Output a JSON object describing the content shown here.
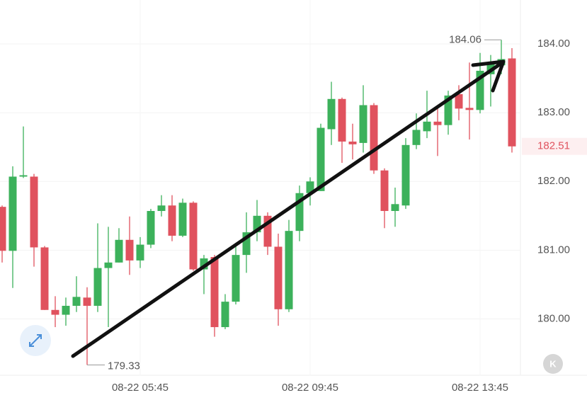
{
  "chart_data": {
    "type": "candlestick",
    "categories": [
      null,
      null,
      null,
      null,
      null,
      null,
      null,
      null,
      null,
      null,
      null,
      null,
      null,
      "08-22 05:45",
      null,
      null,
      null,
      null,
      null,
      null,
      null,
      null,
      null,
      null,
      null,
      null,
      null,
      null,
      null,
      "08-22 09:45",
      null,
      null,
      null,
      null,
      null,
      null,
      null,
      null,
      null,
      null,
      null,
      null,
      null,
      null,
      null,
      "08-22 13:45",
      null,
      null,
      null
    ],
    "open": [
      181.63,
      180.99,
      182.07,
      182.07,
      181.04,
      180.13,
      180.06,
      180.19,
      180.31,
      180.19,
      180.74,
      180.82,
      181.15,
      180.85,
      181.08,
      181.57,
      181.65,
      181.21,
      181.69,
      180.72,
      180.9,
      179.88,
      180.25,
      180.93,
      181.26,
      181.5,
      181.05,
      180.14,
      181.28,
      181.83,
      181.86,
      182.76,
      183.2,
      182.58,
      182.56,
      183.11,
      182.16,
      181.57,
      181.65,
      182.53,
      182.73,
      182.87,
      182.82,
      183.27,
      183.07,
      183.04,
      183.56,
      183.69,
      183.79
    ],
    "high": [
      181.65,
      182.22,
      182.8,
      182.11,
      181.06,
      180.33,
      180.31,
      180.62,
      180.46,
      181.39,
      181.34,
      181.32,
      181.49,
      181.19,
      181.6,
      181.8,
      181.8,
      181.75,
      181.71,
      180.93,
      180.93,
      180.36,
      181.08,
      181.55,
      181.73,
      181.55,
      181.24,
      181.44,
      181.94,
      182.06,
      182.84,
      183.45,
      183.22,
      182.84,
      183.4,
      183.14,
      182.19,
      181.91,
      182.63,
      182.99,
      183.32,
      183.09,
      183.32,
      183.4,
      183.73,
      183.87,
      183.84,
      184.06,
      183.94
    ],
    "low": [
      180.82,
      180.45,
      182.05,
      180.76,
      180.13,
      179.88,
      179.9,
      180.1,
      179.33,
      180.1,
      179.88,
      180.82,
      180.64,
      180.74,
      181.03,
      181.49,
      181.13,
      181.19,
      180.7,
      180.36,
      179.74,
      179.85,
      180.21,
      180.67,
      181.13,
      180.93,
      179.9,
      180.1,
      181.13,
      181.65,
      181.86,
      182.53,
      182.27,
      182.32,
      182.42,
      182.11,
      181.32,
      181.34,
      181.6,
      182.47,
      182.63,
      182.37,
      182.68,
      182.89,
      182.61,
      182.99,
      183.09,
      183.56,
      182.42
    ],
    "close": [
      180.99,
      182.07,
      182.09,
      181.04,
      180.13,
      180.06,
      180.19,
      180.32,
      180.19,
      180.74,
      180.82,
      181.15,
      180.85,
      181.08,
      181.57,
      181.65,
      181.21,
      181.69,
      180.72,
      180.88,
      179.88,
      180.25,
      180.93,
      181.26,
      181.5,
      181.05,
      180.14,
      181.28,
      181.83,
      182.0,
      182.78,
      183.2,
      182.58,
      182.54,
      183.11,
      182.16,
      181.57,
      181.67,
      182.53,
      182.75,
      182.87,
      182.82,
      183.25,
      183.06,
      183.04,
      183.61,
      183.71,
      183.78,
      182.51
    ],
    "up_color": "#3cb15b",
    "down_color": "#e0525e",
    "ylim": [
      179.18,
      184.64
    ],
    "yticks": [
      {
        "value": 180,
        "label": "180.00"
      },
      {
        "value": 181,
        "label": "181.00"
      },
      {
        "value": 182,
        "label": "182.00"
      },
      {
        "value": 183,
        "label": "183.00"
      },
      {
        "value": 184,
        "label": "184.00"
      }
    ],
    "grid": true,
    "high_marker": {
      "value": 184.06,
      "label": "184.06"
    },
    "low_marker": {
      "value": 179.33,
      "label": "179.33"
    },
    "last_price": {
      "value": 182.51,
      "label": "182.51"
    },
    "button_label": "K"
  }
}
